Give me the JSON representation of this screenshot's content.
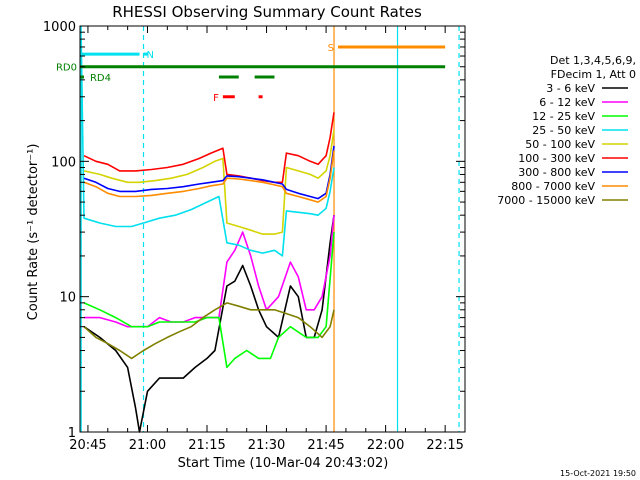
{
  "chart_data": {
    "type": "line",
    "title": "RHESSI Observing Summary Count Rates",
    "xlabel": "Start Time (10-Mar-04 20:43:02)",
    "ylabel": "Count Rate (s⁻¹ detector⁻¹)",
    "yscale": "log",
    "ylim": [
      1,
      1000
    ],
    "xlim": [
      "20:43",
      "22:20"
    ],
    "x_ticks": [
      "20:45",
      "21:00",
      "21:15",
      "21:30",
      "21:45",
      "22:00",
      "22:15"
    ],
    "y_ticks": [
      "1",
      "10",
      "100",
      "1000"
    ],
    "legend_placement": "right",
    "legend_header": [
      "Det 1,3,4,5,6,9,",
      "FDecim 1, Att 0"
    ],
    "timestamp": "15-Oct-2021 19:50",
    "flags": [
      {
        "label": "N",
        "color": "#00e0ee",
        "value": 620,
        "segments": [
          [
            "20:43",
            "20:58"
          ],
          [
            "20:59",
            "21:00"
          ]
        ]
      },
      {
        "label": "F",
        "color": "#ff0000",
        "value": 300,
        "segments": [
          [
            "21:19",
            "21:22"
          ],
          [
            "21:28",
            "21:29"
          ]
        ]
      },
      {
        "label": "S",
        "color": "#ff8c00",
        "value": 700,
        "segments": [
          [
            "21:48",
            "22:15"
          ]
        ]
      },
      {
        "label": "RD0",
        "color": "#008000",
        "value": 500,
        "segments": [
          [
            "20:43",
            "22:15"
          ]
        ]
      },
      {
        "label": "RD4",
        "color": "#008000",
        "value": 420,
        "segments": [
          [
            "20:43",
            "20:44"
          ],
          [
            "21:18",
            "21:23"
          ],
          [
            "21:27",
            "21:32"
          ]
        ]
      }
    ],
    "vlines": [
      {
        "x": "20:43.3",
        "color": "#00e0ee",
        "dashed": false
      },
      {
        "x": "20:59",
        "color": "#00e0ee",
        "dashed": true
      },
      {
        "x": "21:47",
        "color": "#ff8c00",
        "dashed": false
      },
      {
        "x": "22:03",
        "color": "#00e0ee",
        "dashed": false
      },
      {
        "x": "22:18.5",
        "color": "#00e0ee",
        "dashed": true
      }
    ],
    "series": [
      {
        "name": "3 - 6 keV",
        "color": "#000000",
        "points": [
          [
            "20:44",
            6
          ],
          [
            "20:48",
            5
          ],
          [
            "20:52",
            4
          ],
          [
            "20:55",
            3
          ],
          [
            "20:57",
            1.5
          ],
          [
            "20:58",
            1
          ],
          [
            "21:00",
            2
          ],
          [
            "21:03",
            2.5
          ],
          [
            "21:06",
            2.5
          ],
          [
            "21:09",
            2.5
          ],
          [
            "21:12",
            3
          ],
          [
            "21:15",
            3.5
          ],
          [
            "21:17",
            4
          ],
          [
            "21:20",
            12
          ],
          [
            "21:22",
            13
          ],
          [
            "21:24",
            17
          ],
          [
            "21:26",
            12
          ],
          [
            "21:28",
            8
          ],
          [
            "21:30",
            6
          ],
          [
            "21:33",
            5
          ],
          [
            "21:36",
            12
          ],
          [
            "21:38",
            10
          ],
          [
            "21:40",
            5
          ],
          [
            "21:42",
            5
          ],
          [
            "21:44",
            8
          ],
          [
            "21:46",
            25
          ],
          [
            "21:47",
            40
          ]
        ]
      },
      {
        "name": "6 - 12 keV",
        "color": "#ff00ff",
        "points": [
          [
            "20:44",
            7
          ],
          [
            "20:48",
            7
          ],
          [
            "20:52",
            6.5
          ],
          [
            "20:55",
            6
          ],
          [
            "20:58",
            6
          ],
          [
            "21:00",
            6
          ],
          [
            "21:03",
            7
          ],
          [
            "21:06",
            6.5
          ],
          [
            "21:09",
            6.5
          ],
          [
            "21:12",
            7
          ],
          [
            "21:15",
            7
          ],
          [
            "21:18",
            7
          ],
          [
            "21:20",
            18
          ],
          [
            "21:22",
            22
          ],
          [
            "21:24",
            30
          ],
          [
            "21:26",
            20
          ],
          [
            "21:28",
            12
          ],
          [
            "21:30",
            8
          ],
          [
            "21:33",
            10
          ],
          [
            "21:36",
            18
          ],
          [
            "21:38",
            14
          ],
          [
            "21:40",
            8
          ],
          [
            "21:42",
            8
          ],
          [
            "21:44",
            10
          ],
          [
            "21:46",
            20
          ],
          [
            "21:47",
            40
          ]
        ]
      },
      {
        "name": "12 - 25 keV",
        "color": "#00ff00",
        "points": [
          [
            "20:44",
            9
          ],
          [
            "20:48",
            8
          ],
          [
            "20:52",
            7
          ],
          [
            "20:56",
            6
          ],
          [
            "21:00",
            6
          ],
          [
            "21:03",
            6.5
          ],
          [
            "21:06",
            6.5
          ],
          [
            "21:09",
            6.5
          ],
          [
            "21:12",
            6.5
          ],
          [
            "21:15",
            7
          ],
          [
            "21:18",
            7
          ],
          [
            "21:20",
            3
          ],
          [
            "21:22",
            3.5
          ],
          [
            "21:25",
            4
          ],
          [
            "21:28",
            3.5
          ],
          [
            "21:31",
            3.5
          ],
          [
            "21:33",
            5
          ],
          [
            "21:36",
            6
          ],
          [
            "21:40",
            5
          ],
          [
            "21:43",
            5
          ],
          [
            "21:45",
            6
          ],
          [
            "21:47",
            30
          ]
        ]
      },
      {
        "name": "25 - 50 keV",
        "color": "#00e0ee",
        "points": [
          [
            "20:43.3",
            800
          ],
          [
            "20:44",
            38
          ],
          [
            "20:48",
            35
          ],
          [
            "20:52",
            33
          ],
          [
            "20:56",
            33
          ],
          [
            "20:59",
            35
          ],
          [
            "21:03",
            38
          ],
          [
            "21:07",
            40
          ],
          [
            "21:11",
            44
          ],
          [
            "21:15",
            50
          ],
          [
            "21:18",
            55
          ],
          [
            "21:20",
            25
          ],
          [
            "21:23",
            24
          ],
          [
            "21:26",
            22
          ],
          [
            "21:29",
            21
          ],
          [
            "21:32",
            22
          ],
          [
            "21:34",
            20
          ],
          [
            "21:35",
            43
          ],
          [
            "21:38",
            42
          ],
          [
            "21:41",
            41
          ],
          [
            "21:43",
            40
          ],
          [
            "21:45",
            45
          ],
          [
            "21:46",
            60
          ],
          [
            "21:47",
            90
          ]
        ]
      },
      {
        "name": "50 - 100 keV",
        "color": "#d4d400",
        "points": [
          [
            "20:44",
            85
          ],
          [
            "20:48",
            80
          ],
          [
            "20:51",
            75
          ],
          [
            "20:55",
            70
          ],
          [
            "20:58",
            70
          ],
          [
            "21:02",
            72
          ],
          [
            "21:06",
            75
          ],
          [
            "21:10",
            80
          ],
          [
            "21:14",
            90
          ],
          [
            "21:17",
            100
          ],
          [
            "21:19",
            105
          ],
          [
            "21:20",
            35
          ],
          [
            "21:23",
            33
          ],
          [
            "21:26",
            31
          ],
          [
            "21:29",
            29
          ],
          [
            "21:32",
            29
          ],
          [
            "21:34",
            30
          ],
          [
            "21:35",
            90
          ],
          [
            "21:38",
            85
          ],
          [
            "21:41",
            80
          ],
          [
            "21:43",
            75
          ],
          [
            "21:45",
            85
          ],
          [
            "21:46",
            110
          ],
          [
            "21:47",
            170
          ]
        ]
      },
      {
        "name": "100 - 300 keV",
        "color": "#ff0000",
        "points": [
          [
            "20:44",
            110
          ],
          [
            "20:47",
            100
          ],
          [
            "20:50",
            95
          ],
          [
            "20:53",
            85
          ],
          [
            "20:57",
            85
          ],
          [
            "21:01",
            87
          ],
          [
            "21:05",
            90
          ],
          [
            "21:09",
            95
          ],
          [
            "21:13",
            105
          ],
          [
            "21:16",
            115
          ],
          [
            "21:19",
            125
          ],
          [
            "21:20",
            80
          ],
          [
            "21:23",
            78
          ],
          [
            "21:26",
            75
          ],
          [
            "21:29",
            72
          ],
          [
            "21:32",
            70
          ],
          [
            "21:34",
            70
          ],
          [
            "21:35",
            115
          ],
          [
            "21:38",
            110
          ],
          [
            "21:41",
            100
          ],
          [
            "21:43",
            95
          ],
          [
            "21:45",
            110
          ],
          [
            "21:46",
            150
          ],
          [
            "21:47",
            230
          ]
        ]
      },
      {
        "name": "300 - 800 keV",
        "color": "#0000ff",
        "points": [
          [
            "20:44",
            75
          ],
          [
            "20:47",
            70
          ],
          [
            "20:50",
            63
          ],
          [
            "20:53",
            60
          ],
          [
            "20:57",
            60
          ],
          [
            "21:01",
            62
          ],
          [
            "21:05",
            63
          ],
          [
            "21:09",
            65
          ],
          [
            "21:13",
            68
          ],
          [
            "21:16",
            70
          ],
          [
            "21:19",
            72
          ],
          [
            "21:20",
            78
          ],
          [
            "21:23",
            77
          ],
          [
            "21:26",
            75
          ],
          [
            "21:29",
            73
          ],
          [
            "21:32",
            70
          ],
          [
            "21:34",
            68
          ],
          [
            "21:35",
            62
          ],
          [
            "21:38",
            58
          ],
          [
            "21:41",
            55
          ],
          [
            "21:43",
            53
          ],
          [
            "21:45",
            58
          ],
          [
            "21:46",
            80
          ],
          [
            "21:47",
            130
          ]
        ]
      },
      {
        "name": "800 - 7000 keV",
        "color": "#ff8c00",
        "points": [
          [
            "20:44",
            70
          ],
          [
            "20:47",
            65
          ],
          [
            "20:50",
            58
          ],
          [
            "20:53",
            55
          ],
          [
            "20:57",
            55
          ],
          [
            "21:01",
            56
          ],
          [
            "21:05",
            58
          ],
          [
            "21:09",
            60
          ],
          [
            "21:13",
            63
          ],
          [
            "21:16",
            66
          ],
          [
            "21:19",
            68
          ],
          [
            "21:20",
            75
          ],
          [
            "21:23",
            74
          ],
          [
            "21:26",
            72
          ],
          [
            "21:29",
            70
          ],
          [
            "21:32",
            67
          ],
          [
            "21:34",
            65
          ],
          [
            "21:35",
            58
          ],
          [
            "21:38",
            55
          ],
          [
            "21:41",
            52
          ],
          [
            "21:43",
            50
          ],
          [
            "21:45",
            55
          ],
          [
            "21:46",
            75
          ],
          [
            "21:47",
            120
          ]
        ]
      },
      {
        "name": "7000 - 15000 keV",
        "color": "#808000",
        "points": [
          [
            "20:44",
            6
          ],
          [
            "20:47",
            5
          ],
          [
            "20:50",
            4.5
          ],
          [
            "20:53",
            4
          ],
          [
            "20:56",
            3.5
          ],
          [
            "20:59",
            4
          ],
          [
            "21:02",
            4.5
          ],
          [
            "21:05",
            5
          ],
          [
            "21:08",
            5.5
          ],
          [
            "21:11",
            6
          ],
          [
            "21:14",
            7
          ],
          [
            "21:17",
            8
          ],
          [
            "21:20",
            9
          ],
          [
            "21:23",
            8.5
          ],
          [
            "21:26",
            8
          ],
          [
            "21:29",
            8
          ],
          [
            "21:32",
            8
          ],
          [
            "21:35",
            7.5
          ],
          [
            "21:38",
            7
          ],
          [
            "21:41",
            6
          ],
          [
            "21:44",
            5
          ],
          [
            "21:46",
            6
          ],
          [
            "21:47",
            8
          ]
        ]
      }
    ]
  }
}
